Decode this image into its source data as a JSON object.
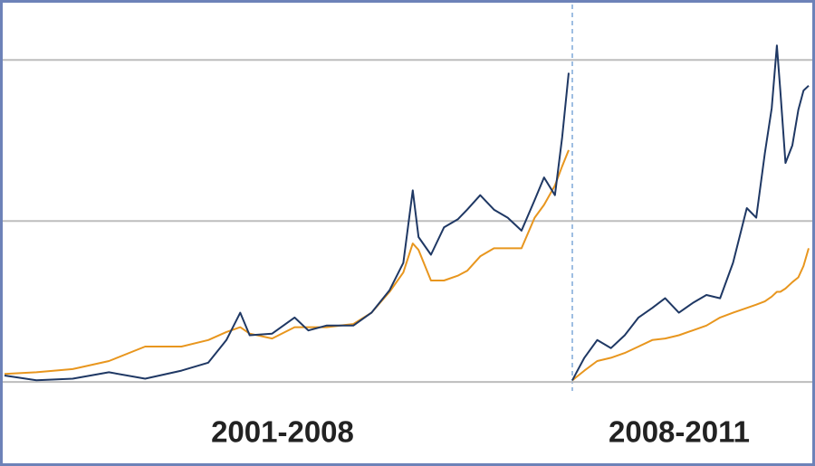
{
  "chart_data": [
    {
      "type": "line",
      "xlabel": "2001-2008",
      "x": [
        2001.0,
        2001.44,
        2001.94,
        2002.44,
        2002.94,
        2003.44,
        2003.81,
        2004.06,
        2004.25,
        2004.38,
        2004.69,
        2005.0,
        2005.19,
        2005.44,
        2005.81,
        2006.06,
        2006.31,
        2006.5,
        2006.63,
        2006.71,
        2006.88,
        2007.06,
        2007.25,
        2007.38,
        2007.56,
        2007.75,
        2007.94,
        2008.13,
        2008.31,
        2008.44,
        2008.59,
        2008.69,
        2008.78
      ],
      "xlim": [
        2001.0,
        2008.78
      ],
      "ylim": [
        -0.05,
        2.35
      ],
      "gridlines": [
        0,
        1,
        2
      ],
      "series": [
        {
          "color": "#e8961e",
          "values": [
            0.05,
            0.06,
            0.08,
            0.13,
            0.22,
            0.22,
            0.26,
            0.31,
            0.34,
            0.3,
            0.27,
            0.34,
            0.34,
            0.34,
            0.36,
            0.43,
            0.56,
            0.68,
            0.86,
            0.82,
            0.63,
            0.63,
            0.66,
            0.69,
            0.78,
            0.83,
            0.83,
            0.83,
            1.02,
            1.1,
            1.22,
            1.34,
            1.44
          ]
        },
        {
          "color": "#1f3864",
          "values": [
            0.04,
            0.01,
            0.02,
            0.06,
            0.02,
            0.07,
            0.12,
            0.26,
            0.43,
            0.29,
            0.3,
            0.4,
            0.32,
            0.35,
            0.35,
            0.43,
            0.57,
            0.74,
            1.19,
            0.9,
            0.79,
            0.96,
            1.01,
            1.07,
            1.16,
            1.07,
            1.02,
            0.94,
            1.13,
            1.27,
            1.16,
            1.52,
            1.92
          ]
        }
      ]
    },
    {
      "type": "line",
      "xlabel": "2008-2011",
      "x": [
        2008.8,
        2008.94,
        2009.09,
        2009.25,
        2009.41,
        2009.57,
        2009.73,
        2009.88,
        2010.04,
        2010.2,
        2010.36,
        2010.52,
        2010.67,
        2010.83,
        2010.94,
        2011.04,
        2011.12,
        2011.18,
        2011.22,
        2011.28,
        2011.36,
        2011.43,
        2011.49,
        2011.55
      ],
      "xlim": [
        2008.8,
        2011.55
      ],
      "ylim": [
        -0.05,
        2.35
      ],
      "gridlines": [
        0,
        1,
        2
      ],
      "series": [
        {
          "color": "#e8961e",
          "values": [
            0.01,
            0.07,
            0.13,
            0.15,
            0.18,
            0.22,
            0.26,
            0.27,
            0.29,
            0.32,
            0.35,
            0.4,
            0.43,
            0.46,
            0.48,
            0.5,
            0.53,
            0.56,
            0.56,
            0.58,
            0.62,
            0.65,
            0.72,
            0.83
          ]
        },
        {
          "color": "#1f3864",
          "values": [
            0.01,
            0.15,
            0.26,
            0.21,
            0.29,
            0.4,
            0.46,
            0.52,
            0.43,
            0.49,
            0.54,
            0.52,
            0.74,
            1.08,
            1.02,
            1.42,
            1.7,
            2.09,
            1.81,
            1.36,
            1.47,
            1.69,
            1.81,
            1.84
          ]
        }
      ]
    }
  ]
}
